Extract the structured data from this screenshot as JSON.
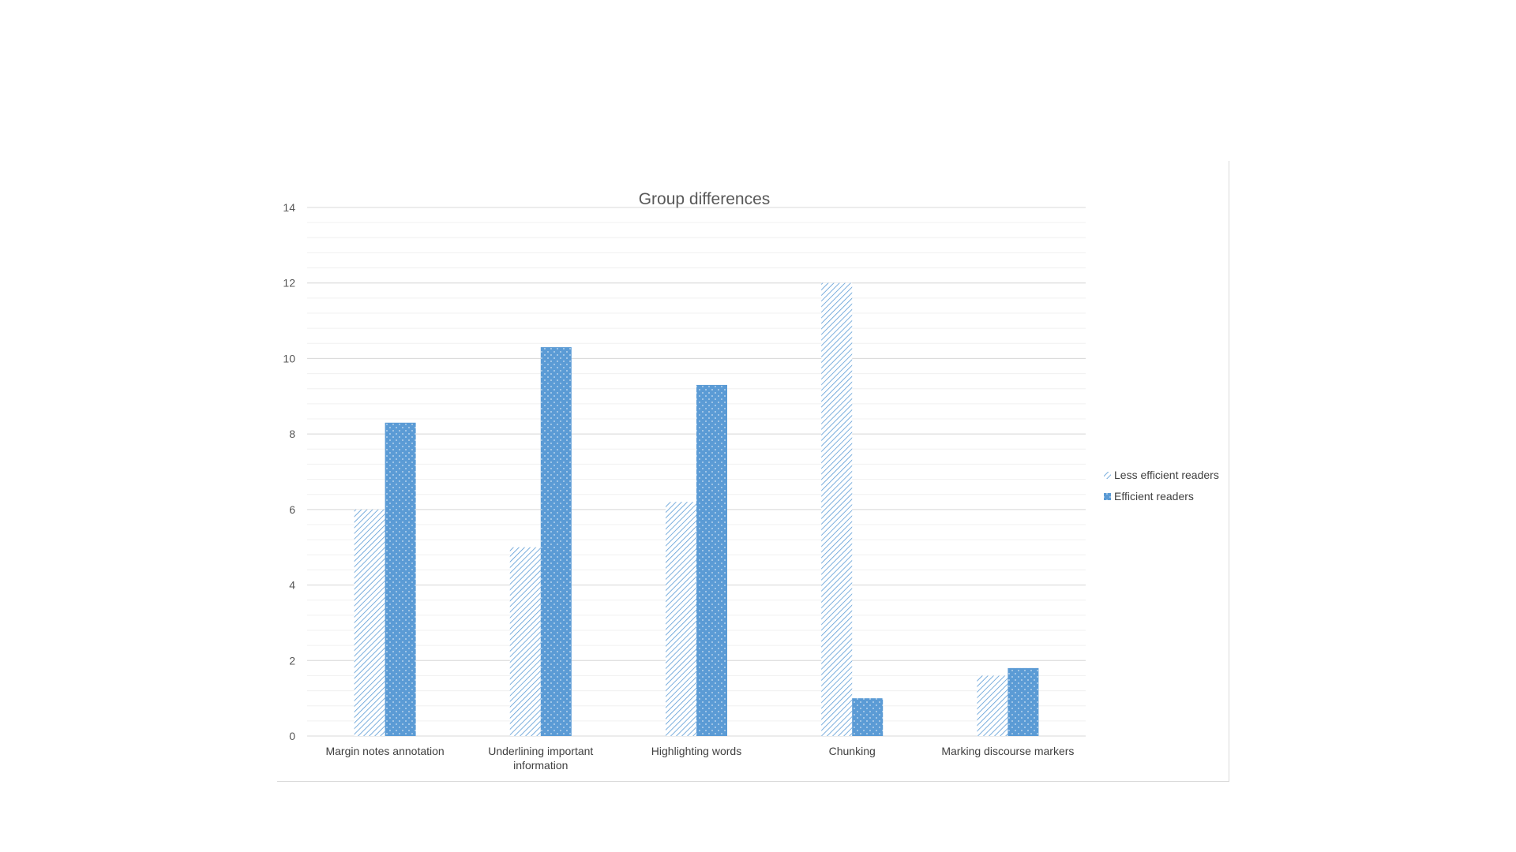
{
  "chart_data": {
    "type": "bar",
    "title": "Group differences",
    "xlabel": "",
    "ylabel": "",
    "ylim": [
      0,
      14
    ],
    "yticks": [
      0,
      2,
      4,
      6,
      8,
      10,
      12,
      14
    ],
    "grid": true,
    "legend_position": "right",
    "categories": [
      [
        "Margin notes annotation"
      ],
      [
        "Underlining important",
        "information"
      ],
      [
        "Highlighting words"
      ],
      [
        "Chunking"
      ],
      [
        "Marking discourse markers"
      ]
    ],
    "series": [
      {
        "name": "Less efficient readers",
        "pattern": "diagonal-hatch",
        "color": "#5b9bd5",
        "values": [
          6,
          5,
          6.2,
          12,
          1.6
        ]
      },
      {
        "name": "Efficient readers",
        "pattern": "dotted",
        "color": "#5b9bd5",
        "values": [
          8.3,
          10.3,
          9.3,
          1,
          1.8
        ]
      }
    ]
  }
}
